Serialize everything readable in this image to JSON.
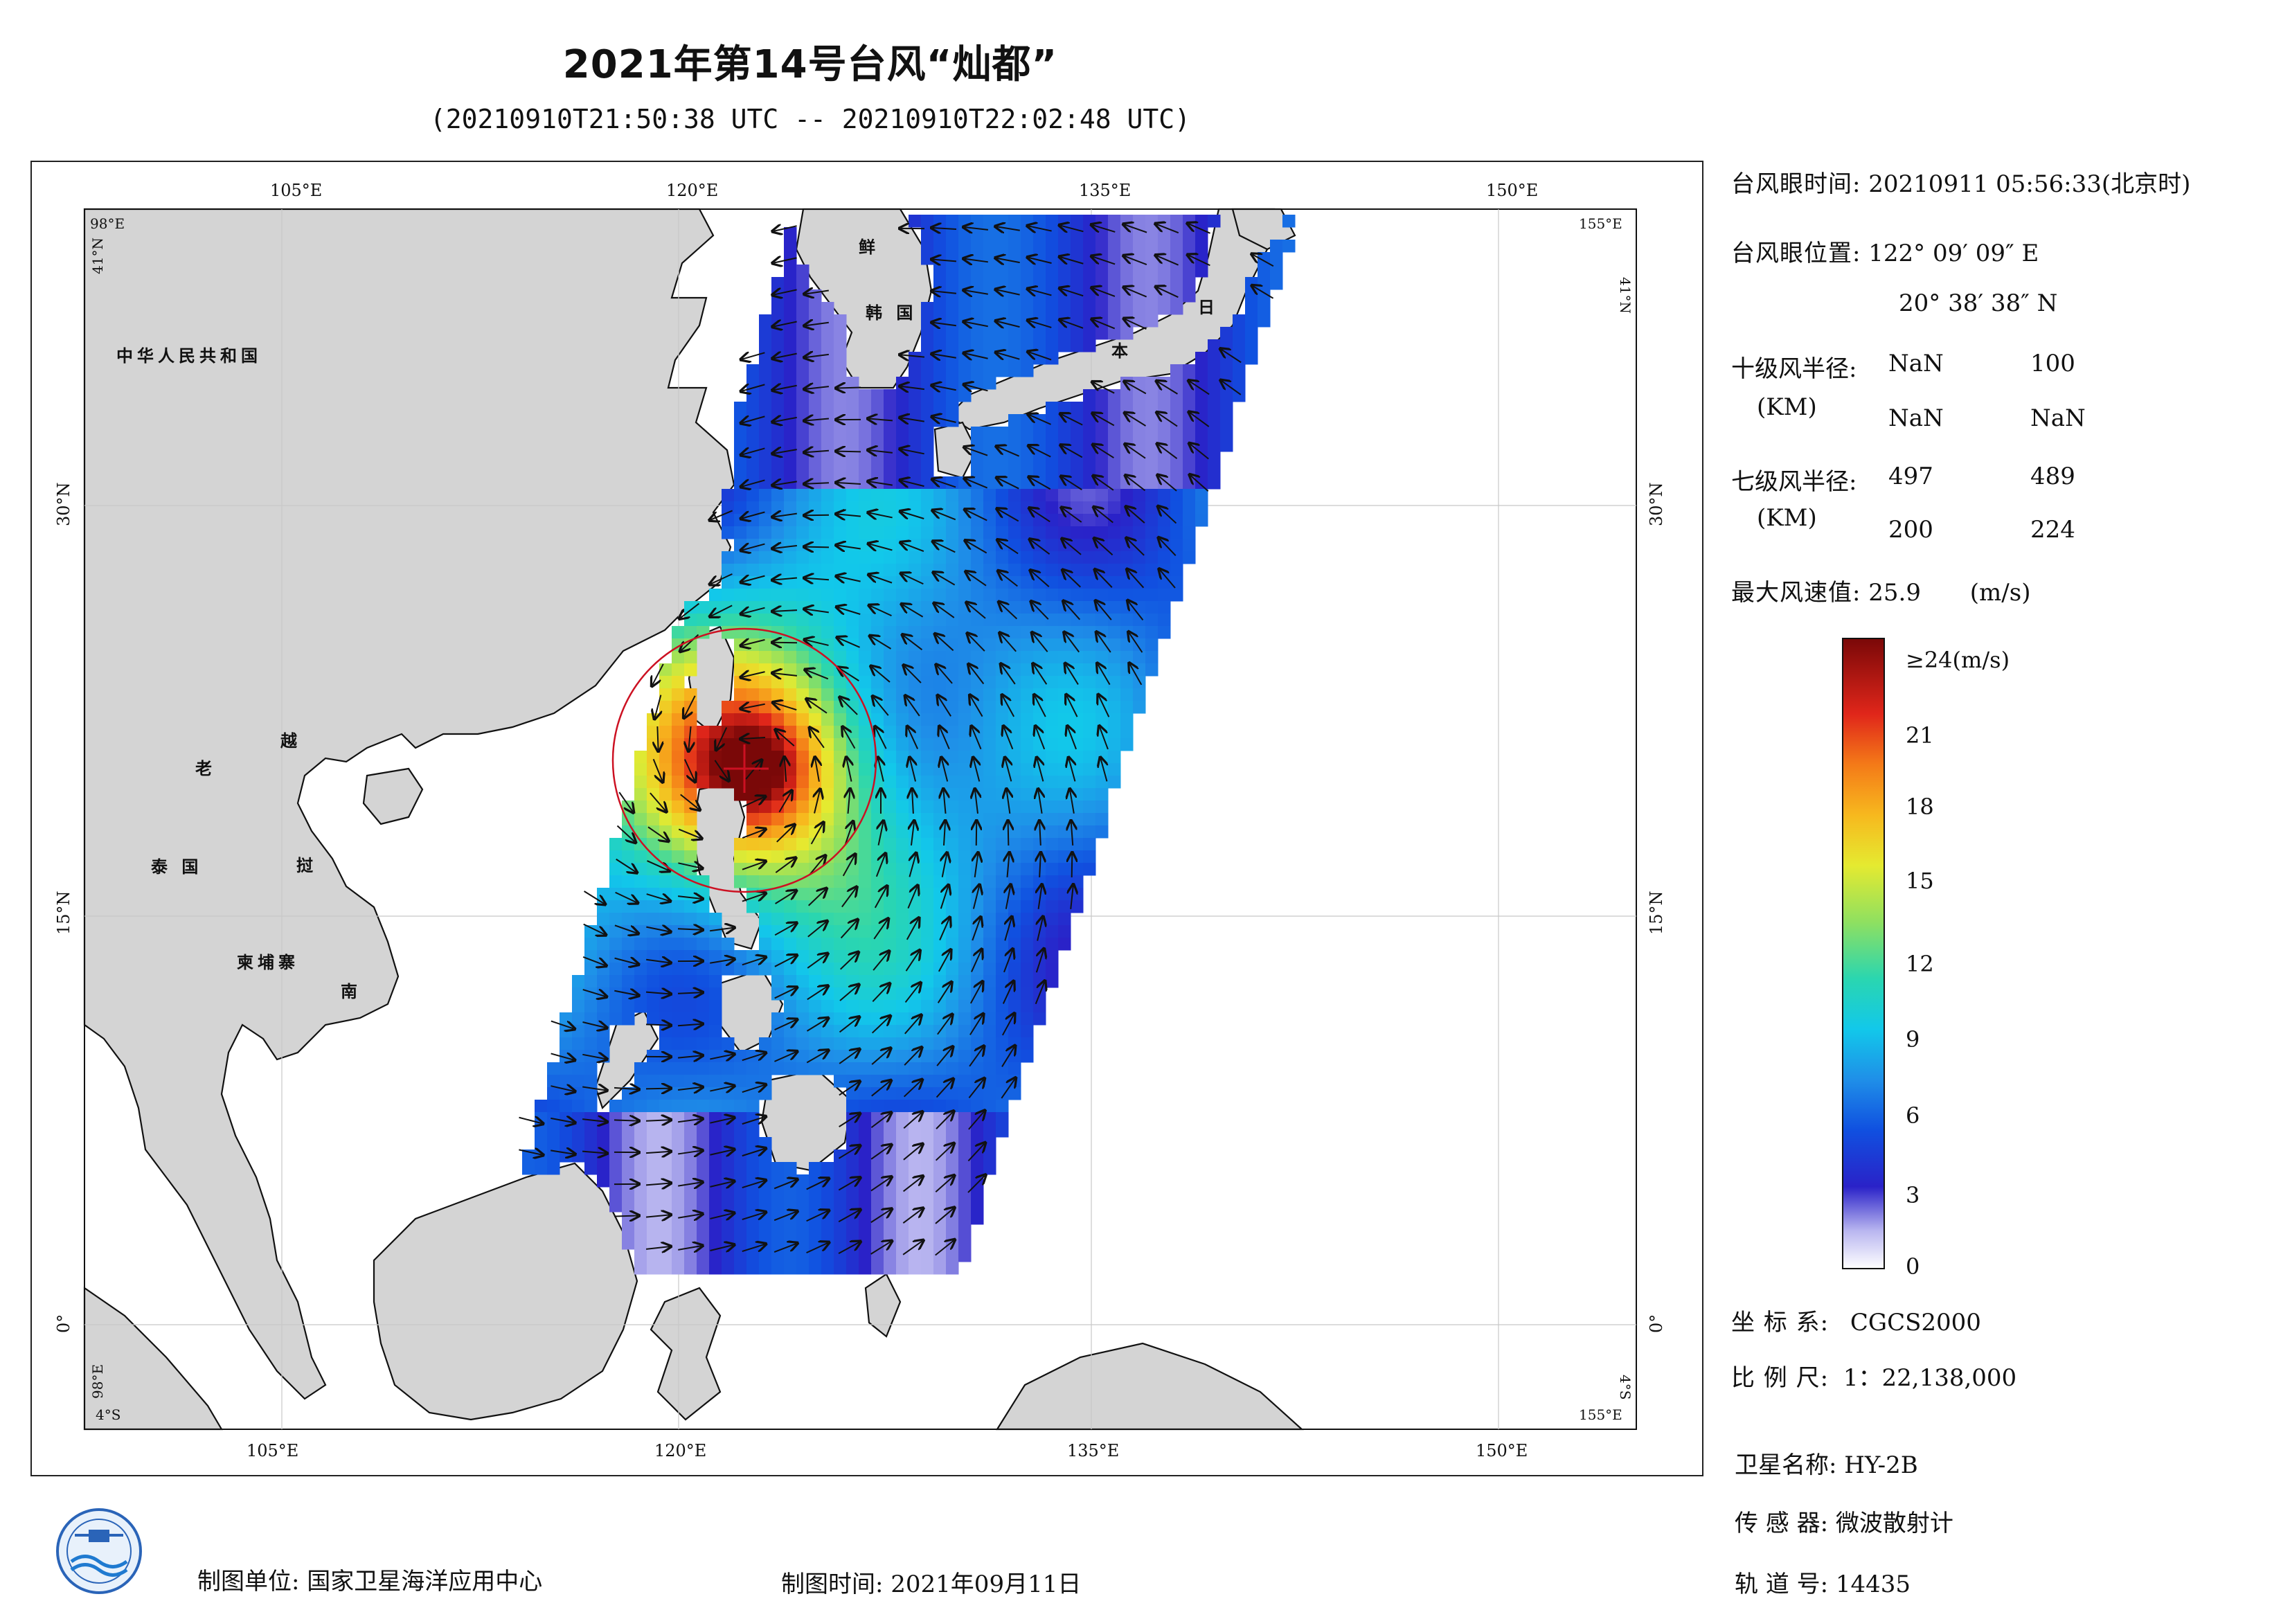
{
  "title": "2021年第14号台风“灿都”",
  "subtitle": "(20210910T21:50:38 UTC -- 20210910T22:02:48 UTC)",
  "map": {
    "top_labels": [
      "105°E",
      "120°E",
      "135°E",
      "150°E"
    ],
    "bottom_labels": [
      "105°E",
      "120°E",
      "135°E",
      "150°E"
    ],
    "left_labels": [
      "30°N",
      "15°N",
      "0°"
    ],
    "right_labels": [
      "30°N",
      "15°N",
      "0°"
    ],
    "corner_labels": {
      "top_left_lon": "98°E",
      "top_left_lat": "41°N",
      "top_right_lon": "155°E",
      "top_right_lat": "41°N",
      "bottom_left_lon": "4°S",
      "bottom_left_lat": "98°E",
      "bottom_right_lon": "155°E",
      "bottom_right_lat": "4°S"
    },
    "country_labels": {
      "china": "中华人民共和国",
      "xian": "鲜",
      "korea": "韩 国",
      "ri": "日",
      "ben": "本",
      "lao": "老",
      "yue": "越",
      "thailand": "泰 国",
      "zhi": "挝",
      "cambodia": "柬埔寨",
      "nan": "南"
    },
    "colors": {
      "land": "#d4d4d4",
      "coast": "#111111",
      "circle": "#cc1122",
      "grid": "#bbbbbb"
    }
  },
  "info": {
    "eye_time_label": "台风眼时间:",
    "eye_time_value": "20210911 05:56:33(北京时)",
    "eye_pos_label": "台风眼位置:",
    "eye_lon": "122° 09′ 09″ E",
    "eye_lat": "20° 38′ 38″ N",
    "r10_label": "十级风半径:",
    "r10_unit": "(KM)",
    "r10_values": [
      "NaN",
      "100",
      "NaN",
      "NaN"
    ],
    "r7_label": "七级风半径:",
    "r7_unit": "(KM)",
    "r7_values": [
      "497",
      "489",
      "200",
      "224"
    ],
    "max_wind_label": "最大风速值:",
    "max_wind_value": "25.9",
    "max_wind_unit": "(m/s)"
  },
  "colorbar": {
    "top_label": "≥24(m/s)",
    "ticks": [
      "21",
      "18",
      "15",
      "12",
      "9",
      "6",
      "3",
      "0"
    ],
    "max": 24
  },
  "meta": {
    "crs_label": "坐 标 系:",
    "crs_value": "CGCS2000",
    "scale_label": "比 例 尺:",
    "scale_value": "1：22,138,000",
    "sat_label": "卫星名称:",
    "sat_value": "HY-2B",
    "sensor_label": "传 感 器:",
    "sensor_value": "微波散射计",
    "orbit_label": "轨 道 号:",
    "orbit_value": "14435",
    "maker_label": "制图单位:",
    "maker_value": "国家卫星海洋应用中心",
    "date_label": "制图时间:",
    "date_value": "2021年09月11日"
  }
}
